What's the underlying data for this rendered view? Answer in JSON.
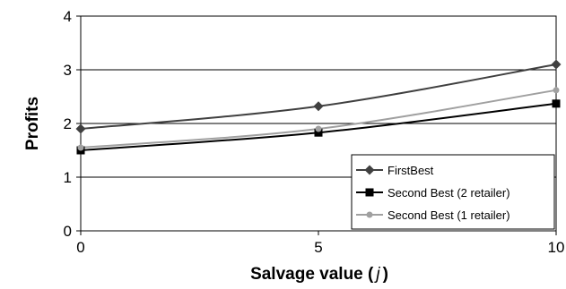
{
  "chart_data": {
    "type": "line",
    "xlabel": "Salvage value (",
    "xlabel_var": "j",
    "xlabel_close": ")",
    "ylabel": "Profits",
    "xlim": [
      0,
      10
    ],
    "ylim": [
      0,
      4
    ],
    "x_ticks": [
      0,
      5,
      10
    ],
    "y_ticks": [
      0,
      1,
      2,
      3,
      4
    ],
    "grid": "horizontal",
    "legend_position": "bottom-right",
    "x": [
      0,
      5,
      10
    ],
    "series": [
      {
        "name": "FirstBest",
        "values": [
          1.9,
          2.32,
          3.1
        ],
        "color": "#404040",
        "marker": "diamond"
      },
      {
        "name": "Second Best (2 retailer)",
        "values": [
          1.5,
          1.83,
          2.37
        ],
        "color": "#000000",
        "marker": "square"
      },
      {
        "name": "Second Best (1 retailer)",
        "values": [
          1.55,
          1.9,
          2.62
        ],
        "color": "#a0a0a0",
        "marker": "circle"
      }
    ]
  }
}
